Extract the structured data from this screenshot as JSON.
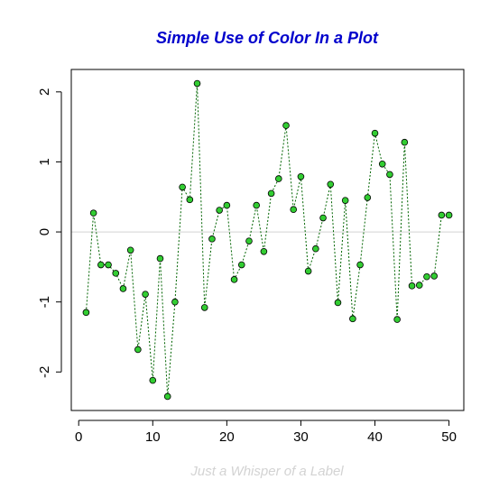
{
  "chart_data": {
    "type": "line",
    "title": "Simple Use of Color In a Plot",
    "xlabel": "Just a Whisper of a Label",
    "ylabel": "",
    "x": [
      1,
      2,
      3,
      4,
      5,
      6,
      7,
      8,
      9,
      10,
      11,
      12,
      13,
      14,
      15,
      16,
      17,
      18,
      19,
      20,
      21,
      22,
      23,
      24,
      25,
      26,
      27,
      28,
      29,
      30,
      31,
      32,
      33,
      34,
      35,
      36,
      37,
      38,
      39,
      40,
      41,
      42,
      43,
      44,
      45,
      46,
      47,
      48,
      49,
      50
    ],
    "series": [
      {
        "values": [
          -1.15,
          0.27,
          -0.47,
          -0.47,
          -0.59,
          -0.81,
          -0.26,
          -1.68,
          -0.89,
          -2.12,
          -0.38,
          -2.35,
          -1.0,
          0.64,
          0.46,
          2.12,
          -1.08,
          -0.1,
          0.31,
          0.38,
          -0.68,
          -0.47,
          -0.13,
          0.38,
          -0.28,
          0.55,
          0.76,
          1.52,
          0.32,
          0.79,
          -0.56,
          -0.24,
          0.2,
          0.68,
          -1.01,
          0.45,
          -1.24,
          -0.47,
          0.49,
          1.41,
          0.97,
          0.82,
          -1.25,
          1.28,
          -0.77,
          -0.76,
          -0.64,
          -0.63,
          0.24,
          0.24
        ]
      }
    ],
    "xticks": [
      "0",
      "10",
      "20",
      "30",
      "40",
      "50"
    ],
    "yticks": [
      "-2",
      "-1",
      "0",
      "1",
      "2"
    ],
    "xlim": [
      -1.0,
      52.0
    ],
    "ylim": [
      -2.55,
      2.32
    ],
    "reference_line_y": 0,
    "grid": false,
    "legend": "none",
    "colors": {
      "title": "#0000cc",
      "line": "#006400",
      "point_fill": "#32cd32",
      "point_stroke": "#000000",
      "reference_line": "#d3d3d3",
      "xlabel": "#d3d3d3",
      "frame": "#000000"
    }
  }
}
